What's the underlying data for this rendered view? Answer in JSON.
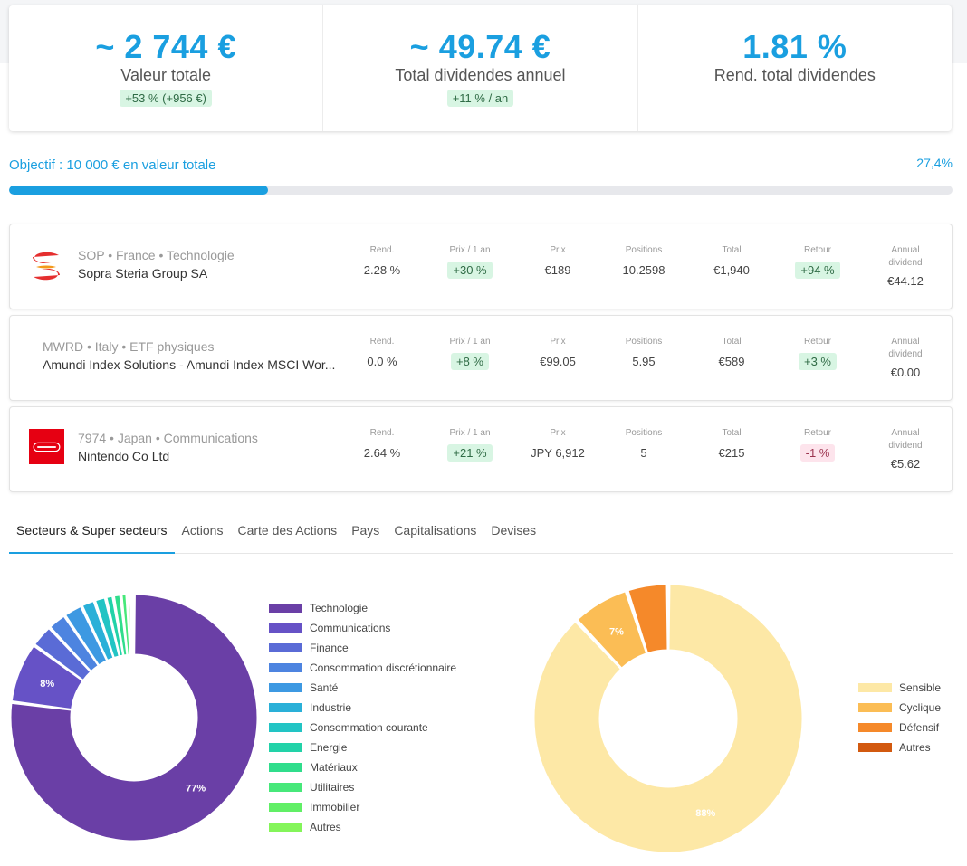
{
  "kpis": [
    {
      "value": "~ 2 744 €",
      "label": "Valeur totale",
      "badge": "+53 % (+956 €)"
    },
    {
      "value": "~ 49.74 €",
      "label": "Total dividendes annuel",
      "badge": "+11 % / an"
    },
    {
      "value": "1.81 %",
      "label": "Rend. total dividendes",
      "badge": null
    }
  ],
  "goal": {
    "label": "Objectif : 10 000 € en valeur totale",
    "percent_text": "27,4%",
    "progress": 0.274
  },
  "column_headers": {
    "rend": "Rend.",
    "prix_1an": "Prix / 1 an",
    "prix": "Prix",
    "positions": "Positions",
    "total": "Total",
    "retour": "Retour",
    "annual_dividend": "Annual dividend"
  },
  "holdings": [
    {
      "meta": "SOP • France • Technologie",
      "name": "Sopra Steria Group SA",
      "logo": "sopra-steria-logo",
      "rend": "2.28 %",
      "prix_1an": "+30 %",
      "prix_1an_color": "green",
      "prix": "€189",
      "positions": "10.2598",
      "total": "€1,940",
      "retour": "+94 %",
      "retour_color": "green",
      "annual_dividend": "€44.12"
    },
    {
      "meta": "MWRD • Italy • ETF physiques",
      "name": "Amundi Index Solutions - Amundi Index MSCI Wor...",
      "logo": null,
      "rend": "0.0 %",
      "prix_1an": "+8 %",
      "prix_1an_color": "green",
      "prix": "€99.05",
      "positions": "5.95",
      "total": "€589",
      "retour": "+3 %",
      "retour_color": "green",
      "annual_dividend": "€0.00"
    },
    {
      "meta": "7974 • Japan • Communications",
      "name": "Nintendo Co Ltd",
      "logo": "nintendo-logo",
      "rend": "2.64 %",
      "prix_1an": "+21 %",
      "prix_1an_color": "green",
      "prix": "JPY 6,912",
      "positions": "5",
      "total": "€215",
      "retour": "-1 %",
      "retour_color": "red",
      "annual_dividend": "€5.62"
    }
  ],
  "tabs": [
    "Secteurs & Super secteurs",
    "Actions",
    "Carte des Actions",
    "Pays",
    "Capitalisations",
    "Devises"
  ],
  "active_tab": 0,
  "charts": {
    "sectors": {
      "type": "donut",
      "labels": [
        "Technologie",
        "Communications",
        "Finance",
        "Consommation discrétionnaire",
        "Santé",
        "Industrie",
        "Consommation courante",
        "Energie",
        "Matériaux",
        "Utilitaires",
        "Immobilier",
        "Autres"
      ],
      "values": [
        77,
        8,
        3,
        2.5,
        2.5,
        1.8,
        1.5,
        1,
        1,
        0.8,
        0.5,
        0.4
      ],
      "colors": [
        "#6a3fa6",
        "#6652c6",
        "#5a6bd6",
        "#4d84e0",
        "#3d99e2",
        "#2ab0d8",
        "#22c4c4",
        "#22d2a8",
        "#30dd8c",
        "#47e87a",
        "#61ef66",
        "#84f55a"
      ],
      "data_labels": [
        "77%",
        "8%",
        "",
        "",
        "",
        "",
        "",
        "",
        "",
        "",
        "",
        ""
      ]
    },
    "super_sectors": {
      "type": "donut",
      "labels": [
        "Sensible",
        "Cyclique",
        "Défensif",
        "Autres"
      ],
      "values": [
        88,
        7,
        5,
        0
      ],
      "colors": [
        "#fde8a6",
        "#fbbd55",
        "#f5892a",
        "#d2590f"
      ],
      "data_labels": [
        "88%",
        "7%",
        "",
        ""
      ]
    }
  }
}
